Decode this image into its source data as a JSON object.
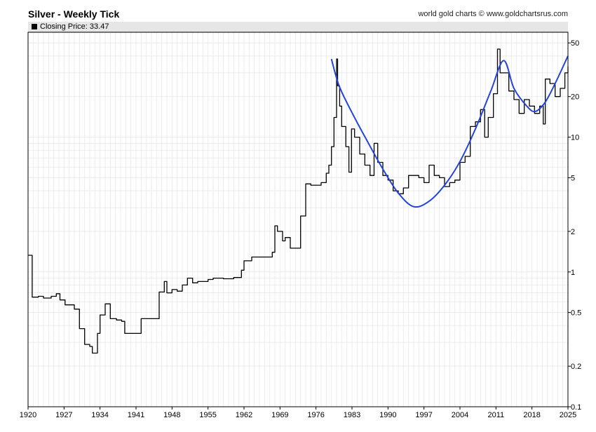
{
  "header": {
    "title": "Silver - Weekly Tick",
    "source": "world gold charts © www.goldchartsrus.com"
  },
  "legend": {
    "label": "Closing Price: 33.47"
  },
  "chart_data": {
    "type": "line",
    "title": "Silver - Weekly Tick",
    "y_scale": "log",
    "ylim": [
      0.1,
      60
    ],
    "xlim": [
      1920,
      2025
    ],
    "x_ticks": [
      "1920",
      "1927",
      "1934",
      "1941",
      "1948",
      "1955",
      "1962",
      "1969",
      "1976",
      "1983",
      "1990",
      "1997",
      "2004",
      "2011",
      "2018",
      "2025"
    ],
    "y_ticks": [
      "0.1",
      "0.2",
      "0.5",
      "1",
      "2",
      "5",
      "10",
      "20",
      "50"
    ],
    "grid": true,
    "legend_placement": "top-left",
    "colors": {
      "price": "#000000",
      "trend": "#2244dd"
    },
    "series": [
      {
        "name": "Closing Price",
        "step": true,
        "points": [
          [
            1920,
            1.33
          ],
          [
            1920.8,
            0.65
          ],
          [
            1922,
            0.66
          ],
          [
            1923,
            0.64
          ],
          [
            1924.5,
            0.66
          ],
          [
            1925.5,
            0.69
          ],
          [
            1926.2,
            0.62
          ],
          [
            1927.2,
            0.57
          ],
          [
            1929,
            0.53
          ],
          [
            1930,
            0.38
          ],
          [
            1931,
            0.29
          ],
          [
            1932,
            0.28
          ],
          [
            1932.5,
            0.25
          ],
          [
            1933.5,
            0.35
          ],
          [
            1934,
            0.48
          ],
          [
            1935,
            0.58
          ],
          [
            1936,
            0.45
          ],
          [
            1937.2,
            0.44
          ],
          [
            1938.2,
            0.43
          ],
          [
            1938.8,
            0.35
          ],
          [
            1942,
            0.45
          ],
          [
            1945.5,
            0.71
          ],
          [
            1946.5,
            0.85
          ],
          [
            1947,
            0.7
          ],
          [
            1948,
            0.74
          ],
          [
            1949,
            0.72
          ],
          [
            1950,
            0.8
          ],
          [
            1951,
            0.9
          ],
          [
            1952,
            0.83
          ],
          [
            1953,
            0.85
          ],
          [
            1955,
            0.88
          ],
          [
            1956,
            0.9
          ],
          [
            1958,
            0.89
          ],
          [
            1960,
            0.91
          ],
          [
            1961.5,
            1.03
          ],
          [
            1962,
            1.21
          ],
          [
            1963.5,
            1.29
          ],
          [
            1967.5,
            1.4
          ],
          [
            1968,
            2.2
          ],
          [
            1968.5,
            2.0
          ],
          [
            1969.5,
            1.7
          ],
          [
            1970,
            1.8
          ],
          [
            1971,
            1.5
          ],
          [
            1972,
            1.5
          ],
          [
            1973,
            2.6
          ],
          [
            1974,
            4.5
          ],
          [
            1975,
            4.4
          ],
          [
            1976,
            4.4
          ],
          [
            1977,
            4.6
          ],
          [
            1978,
            5.4
          ],
          [
            1978.5,
            6.2
          ],
          [
            1979,
            8.5
          ],
          [
            1979.5,
            14.0
          ],
          [
            1980.0,
            38.0
          ],
          [
            1980.2,
            24.0
          ],
          [
            1980.6,
            17.0
          ],
          [
            1981,
            12.0
          ],
          [
            1981.8,
            8.5
          ],
          [
            1982.4,
            5.5
          ],
          [
            1982.9,
            11.5
          ],
          [
            1983.5,
            10.0
          ],
          [
            1984.5,
            7.5
          ],
          [
            1985.5,
            6.2
          ],
          [
            1986.5,
            5.2
          ],
          [
            1987.3,
            9.0
          ],
          [
            1988,
            6.5
          ],
          [
            1989,
            5.2
          ],
          [
            1990,
            4.8
          ],
          [
            1991,
            4.0
          ],
          [
            1992,
            3.8
          ],
          [
            1993,
            4.2
          ],
          [
            1994,
            5.2
          ],
          [
            1995,
            5.2
          ],
          [
            1996,
            5.0
          ],
          [
            1997,
            4.6
          ],
          [
            1998,
            6.2
          ],
          [
            1999,
            5.2
          ],
          [
            2000,
            5.0
          ],
          [
            2001,
            4.3
          ],
          [
            2002,
            4.6
          ],
          [
            2003,
            4.8
          ],
          [
            2004,
            6.5
          ],
          [
            2005,
            7.2
          ],
          [
            2006,
            12.0
          ],
          [
            2007,
            13.0
          ],
          [
            2008,
            16.0
          ],
          [
            2008.8,
            10.0
          ],
          [
            2009.5,
            14.0
          ],
          [
            2010.5,
            21.0
          ],
          [
            2011.3,
            45.0
          ],
          [
            2011.8,
            30.0
          ],
          [
            2012.5,
            30.0
          ],
          [
            2013.5,
            22.0
          ],
          [
            2014.5,
            19.0
          ],
          [
            2015.5,
            15.0
          ],
          [
            2016.5,
            19.0
          ],
          [
            2017.5,
            17.0
          ],
          [
            2018.5,
            15.0
          ],
          [
            2019.5,
            17.0
          ],
          [
            2020.2,
            12.5
          ],
          [
            2020.6,
            27.0
          ],
          [
            2021.5,
            25.0
          ],
          [
            2022.5,
            20.0
          ],
          [
            2023.5,
            23.0
          ],
          [
            2024.4,
            30.0
          ],
          [
            2025,
            33.47
          ]
        ]
      },
      {
        "name": "",
        "step": false,
        "points": [
          [
            1979,
            38.0
          ],
          [
            1980.5,
            24.0
          ],
          [
            1983,
            15.2
          ],
          [
            1986,
            9.3
          ],
          [
            1989,
            5.8
          ],
          [
            1992,
            3.85
          ],
          [
            1995,
            3.05
          ],
          [
            1998,
            3.35
          ],
          [
            2001,
            4.4
          ],
          [
            2004,
            6.6
          ],
          [
            2007,
            11.5
          ],
          [
            2010,
            22.0
          ],
          [
            2012.5,
            37.0
          ],
          [
            2014.5,
            23.0
          ],
          [
            2017,
            17.0
          ],
          [
            2018.6,
            15.5
          ],
          [
            2020.5,
            18.0
          ],
          [
            2022.5,
            25.0
          ],
          [
            2025,
            40.0
          ]
        ]
      }
    ]
  }
}
